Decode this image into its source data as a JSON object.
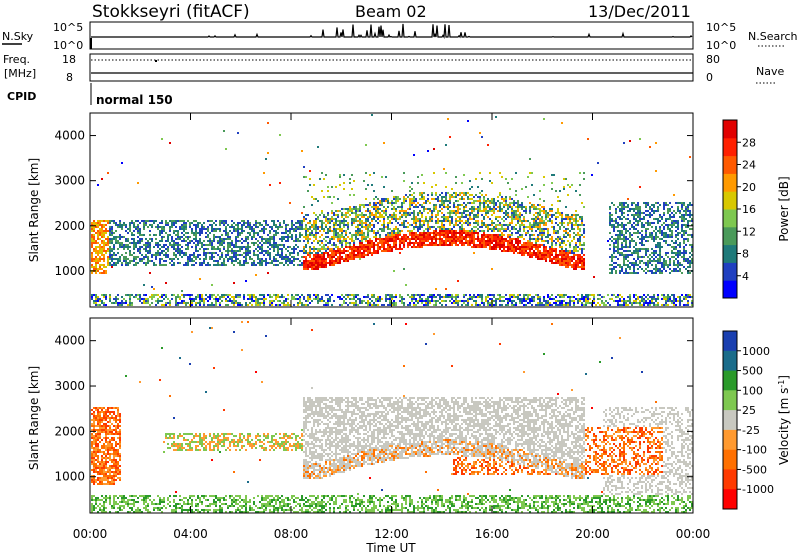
{
  "header": {
    "station": "Stokkseyri (fitACF)",
    "beam": "Beam 02",
    "date": "13/Dec/2011"
  },
  "top_panels": {
    "nsky_label": "N.Sky",
    "nsky_ticks": [
      "10^5",
      "10^0"
    ],
    "nsearch_label": "N.Search",
    "nsearch_ticks": [
      "10^5",
      "10^0"
    ],
    "freq_label": "Freq.",
    "freq_unit": "[MHz]",
    "freq_ticks": [
      "18",
      "8"
    ],
    "nave_label": "Nave",
    "nave_ticks": [
      "80",
      "0"
    ],
    "cpid_label": "CPID",
    "cpid_value": "normal 150"
  },
  "colors": {
    "power_scale": [
      "#0000ff",
      "#2040c0",
      "#1f7a7a",
      "#4a9a5a",
      "#7ec850",
      "#d8c800",
      "#ff9a00",
      "#ff5a00",
      "#ff2000",
      "#e00000"
    ],
    "velocity_scale": [
      "#1a3fb0",
      "#1a6c8a",
      "#2a9a2a",
      "#7ec850",
      "#c8c8c0",
      "#ff9a30",
      "#ff7000",
      "#ff3a00",
      "#ff0000"
    ],
    "ground_scatter": "#c8c8c0"
  },
  "chart_data": [
    {
      "type": "heatmap",
      "panel": "power",
      "ylabel": "Slant Range [km]",
      "yticks": [
        "1000",
        "2000",
        "3000",
        "4000"
      ],
      "ylim": [
        200,
        4500
      ],
      "colorbar_label": "Power [dB]",
      "colorbar_ticks": [
        "4",
        "8",
        "12",
        "16",
        "20",
        "24",
        "28"
      ],
      "clim": [
        0,
        32
      ]
    },
    {
      "type": "heatmap",
      "panel": "velocity",
      "ylabel": "Slant Range [km]",
      "yticks": [
        "1000",
        "2000",
        "3000",
        "4000"
      ],
      "ylim": [
        200,
        4500
      ],
      "colorbar_label": "Velocity [m s^-1]",
      "colorbar_ticks": [
        "1000",
        "500",
        "100",
        "25",
        "-25",
        "-100",
        "-500",
        "-1000"
      ]
    }
  ],
  "x_axis": {
    "ticks": [
      "00:00",
      "04:00",
      "08:00",
      "12:00",
      "16:00",
      "20:00",
      "00:00"
    ],
    "label": "Time UT"
  }
}
